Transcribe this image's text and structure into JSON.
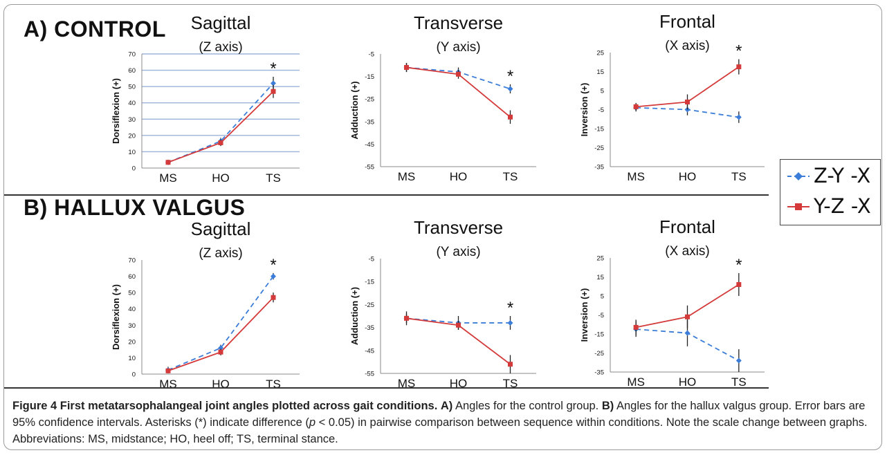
{
  "section_labels": {
    "a": "A) CONTROL",
    "b": "B) HALLUX VALGUS"
  },
  "legend": [
    {
      "label": "Z-Y -X",
      "color": "#3b7dd8",
      "marker": "diamond",
      "dash": true
    },
    {
      "label": "Y-Z -X",
      "color": "#d43a3a",
      "marker": "square",
      "dash": false
    }
  ],
  "colors": {
    "blue": "#3b7dd8",
    "red": "#d43a3a",
    "grid": "#9bb3d8",
    "axis": "#888888"
  },
  "caption": {
    "fig_label": "Figure 4 First metatarsophalangeal joint angles plotted across gait conditions.",
    "a_label": "A)",
    "a_text": " Angles for the control group. ",
    "b_label": "B)",
    "b_text": " Angles for the hallux valgus group. Error bars are 95% confidence intervals. Asterisks (*) indicate difference (",
    "p_symbol": "p",
    "p_text": " < 0.05) in pairwise comparison between sequence within conditions. Note the scale change between graphs. Abbreviations: MS, midstance; HO, heel off; TS, terminal stance."
  },
  "chart_data": [
    {
      "type": "line",
      "panel": "A",
      "title": "Sagittal",
      "subtitle": "(Z axis)",
      "ylabel": "Dorsiflexion (+)",
      "categories": [
        "MS",
        "HO",
        "TS"
      ],
      "ylim": [
        0,
        70
      ],
      "yticks": [
        0,
        10,
        20,
        30,
        40,
        50,
        60,
        70
      ],
      "grid": true,
      "series": [
        {
          "name": "Z-Y -X",
          "values": [
            3.5,
            16.5,
            52
          ],
          "err": [
            1.5,
            2,
            4
          ]
        },
        {
          "name": "Y-Z -X",
          "values": [
            3.5,
            15.5,
            47
          ],
          "err": [
            1.5,
            2,
            4
          ]
        }
      ],
      "significant": "TS"
    },
    {
      "type": "line",
      "panel": "A",
      "title": "Transverse",
      "subtitle": "(Y axis)",
      "ylabel": "Adduction (+)",
      "categories": [
        "MS",
        "HO",
        "TS"
      ],
      "ylim": [
        -55,
        -5
      ],
      "yticks": [
        -55,
        -45,
        -35,
        -25,
        -15,
        -5
      ],
      "grid": false,
      "series": [
        {
          "name": "Z-Y -X",
          "values": [
            -11,
            -13,
            -20.5
          ],
          "err": [
            2,
            2,
            2
          ]
        },
        {
          "name": "Y-Z -X",
          "values": [
            -11,
            -14,
            -33
          ],
          "err": [
            2,
            2,
            3
          ]
        }
      ],
      "significant": "TS"
    },
    {
      "type": "line",
      "panel": "A",
      "title": "Frontal",
      "subtitle": "(X axis)",
      "ylabel": "Inversion (+)",
      "categories": [
        "MS",
        "HO",
        "TS"
      ],
      "ylim": [
        -35,
        25
      ],
      "yticks": [
        -35,
        -25,
        -15,
        -5,
        5,
        15,
        25
      ],
      "grid": false,
      "series": [
        {
          "name": "Z-Y -X",
          "values": [
            -4,
            -5,
            -9
          ],
          "err": [
            2,
            3,
            3
          ]
        },
        {
          "name": "Y-Z -X",
          "values": [
            -3.5,
            -1,
            17.5
          ],
          "err": [
            2,
            4,
            4
          ]
        }
      ],
      "significant": "TS"
    },
    {
      "type": "line",
      "panel": "B",
      "title": "Sagittal",
      "subtitle": "(Z axis)",
      "ylabel": "Dorsiflexion (+)",
      "categories": [
        "MS",
        "HO",
        "TS"
      ],
      "ylim": [
        0,
        70
      ],
      "yticks": [
        0,
        10,
        20,
        30,
        40,
        50,
        60,
        70
      ],
      "grid": false,
      "series": [
        {
          "name": "Z-Y -X",
          "values": [
            2.5,
            16,
            60
          ],
          "err": [
            2,
            2,
            2
          ]
        },
        {
          "name": "Y-Z -X",
          "values": [
            2,
            13.5,
            47
          ],
          "err": [
            1.5,
            2,
            3
          ]
        }
      ],
      "significant": "TS"
    },
    {
      "type": "line",
      "panel": "B",
      "title": "Transverse",
      "subtitle": "(Y axis)",
      "ylabel": "Adduction (+)",
      "categories": [
        "MS",
        "HO",
        "TS"
      ],
      "ylim": [
        -55,
        -5
      ],
      "yticks": [
        -55,
        -45,
        -35,
        -25,
        -15,
        -5
      ],
      "grid": false,
      "series": [
        {
          "name": "Z-Y -X",
          "values": [
            -31,
            -33,
            -33
          ],
          "err": [
            3,
            3,
            3
          ]
        },
        {
          "name": "Y-Z -X",
          "values": [
            -31,
            -34,
            -51
          ],
          "err": [
            2,
            2,
            4
          ]
        }
      ],
      "significant": "TS"
    },
    {
      "type": "line",
      "panel": "B",
      "title": "Frontal",
      "subtitle": "(X axis)",
      "ylabel": "Inversion (+)",
      "categories": [
        "MS",
        "HO",
        "TS"
      ],
      "ylim": [
        -35,
        25
      ],
      "yticks": [
        -35,
        -25,
        -15,
        -5,
        5,
        15,
        25
      ],
      "grid": false,
      "series": [
        {
          "name": "Z-Y -X",
          "values": [
            -12.5,
            -14.5,
            -29
          ],
          "err": [
            4,
            7,
            6
          ]
        },
        {
          "name": "Y-Z -X",
          "values": [
            -11.5,
            -6,
            11
          ],
          "err": [
            4,
            6,
            6
          ]
        }
      ],
      "significant": "TS"
    }
  ]
}
